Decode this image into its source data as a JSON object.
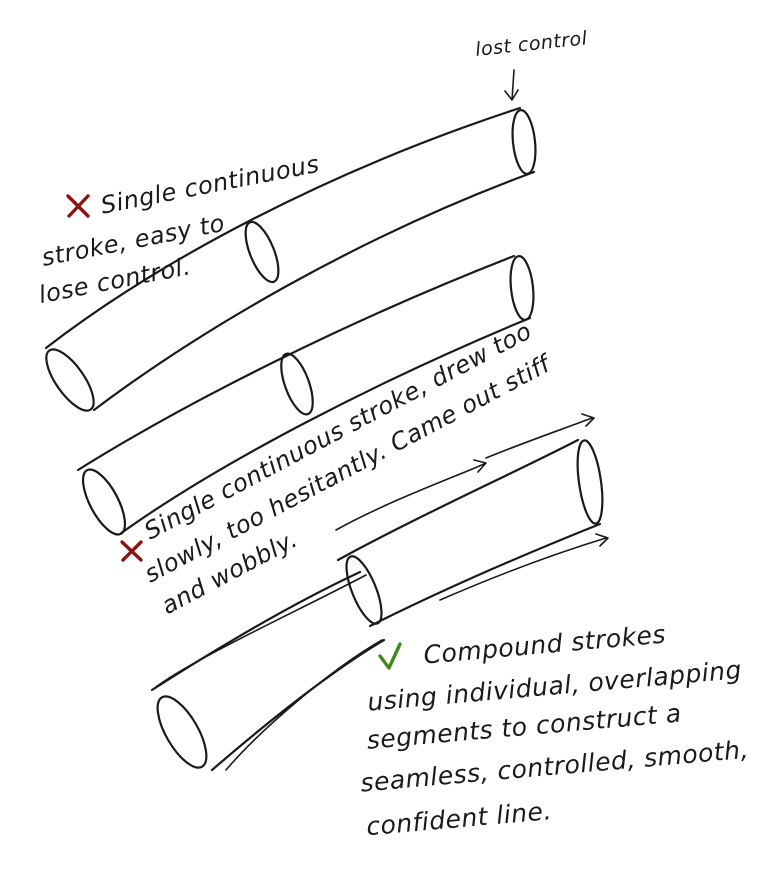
{
  "annotations": {
    "lost_control": "lost control",
    "example1": {
      "line1": "Single continuous",
      "line2": "stroke, easy to",
      "line3": "lose control."
    },
    "example2": {
      "line1": "Single continuous stroke, drew too",
      "line2": "slowly, too hesitantly. Came out stiff",
      "line3": "and wobbly."
    },
    "example3": {
      "line1": "Compound strokes",
      "line2": "using individual, overlapping",
      "line3": "segments to construct a",
      "line4": "seamless, controlled, smooth,",
      "line5": "confident line."
    }
  },
  "icons": {
    "bad": "x-mark-icon",
    "good": "checkmark-icon"
  },
  "colors": {
    "ink": "#1a1a1a",
    "x_mark": "#8a1414",
    "check_mark": "#3f8a1e",
    "background": "#ffffff"
  }
}
